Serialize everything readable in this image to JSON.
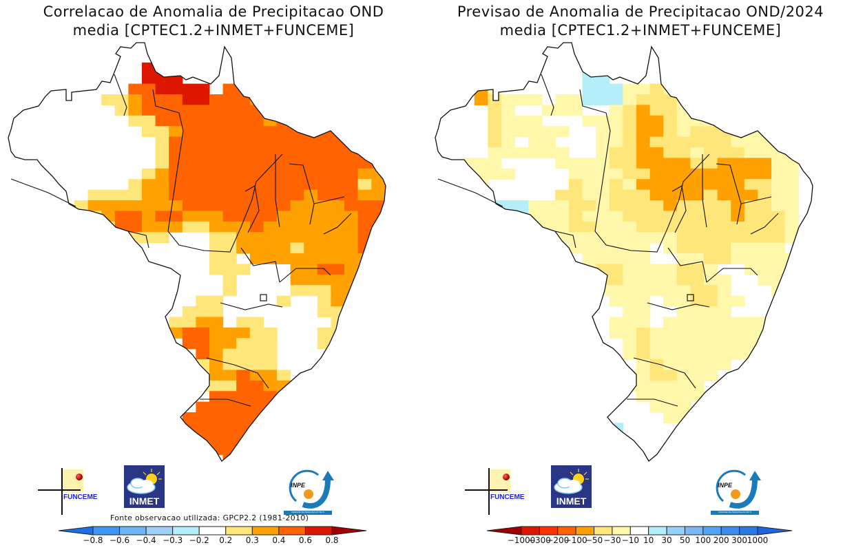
{
  "chart_data": [
    {
      "type": "heatmap",
      "id": "left",
      "title": "Correlacao de Anomalia de Precipitacao OND",
      "subtitle": "media [CPTEC1.2+INMET+FUNCEME]",
      "source_note": "Fonte observacao utilizada: GPCP2.2 (1981-2010)",
      "region": "Brasil",
      "colorbar": {
        "tick_labels": [
          "-0.8",
          "-0.6",
          "-0.4",
          "-0.3",
          "-0.2",
          "0.2",
          "0.3",
          "0.4",
          "0.6",
          "0.8"
        ],
        "colors": [
          "#1e6fe6",
          "#3c96f2",
          "#6fb4f5",
          "#9fd1f8",
          "#b4eef8",
          "#ffffff",
          "#ffe67a",
          "#ffa100",
          "#ff6400",
          "#dd1600",
          "#a00000"
        ]
      },
      "legend_classes": {
        "w": "< 0.2",
        "y": "0.2 - 0.3",
        "o": "0.3 - 0.4",
        "r": "0.4 - 0.6",
        "d": "0.6 - 0.8"
      },
      "class_colors": {
        "w": "#ffffff",
        "y": "#ffe67a",
        "o": "#ffa100",
        "r": "#ff6400",
        "d": "#dd1600"
      },
      "grid": [
        "wwwwwwwwwwwwwwwwwwwwwwwwwwww",
        "wwwwwwwwwwwddwwwwwwwwwwwwwww",
        "wwwwwwwwwwdddwwwwwwwwwwwwwww",
        "wwwwwwwwwwdddwwwwwrrwwwwwwww",
        "wwwwwwwwwrrddddwrrrwwwwwwwww",
        "wwwwwwwyyorrrddrrroowwwwwwww",
        "wwwwwwwwyorrrrrrrrrowwwwwwww",
        "wwwwwwwwwyyrrrrrrrrorrrrwwww",
        "wwwwwwwwwwyyorrrrrrrrrrrrwww",
        "wwwwwwwwwwwyrrrrrrrrrrrrrroow",
        "wwwwwwwwwwwyrrrrrrrrrrrrrrrow",
        "wwwwwwwwwwwyrrrrrrrrrrrrrrrrw",
        "wwwwwwwwwwyorrrrrrrrrrrrrroor",
        "ywwwwwwwwyoorrrrrrrrrrrrrryor",
        "ywwwwwyyyyoorrrrrrrrrrorrroor",
        "wwwwwyooooooorrrrrrrroooorrrr",
        "wwwwwyyorrorrooorrrroooooorrr",
        "wwwwwwwyrroooyyooorooooooorrw",
        "wwwwwwwwwyyywwwyyooooooooorrw",
        "wwwwwwwwwwwwwwwyyooooyoooorrw",
        "wwwwwwwwwwwwwwwyywooooooooorw",
        "wwwwwwwwwwwwwwwyyywwwoorroorw",
        "wwwwwwwwwwwwwwwwywwwwoooooorw",
        "wwwwwwwwwwwwwwwwywwwwyyyooorw",
        "wwwwwwwwwwwwwwyywwwwywwyooorw",
        "wwwwwwwwwwwwwyyywwwwwwwyyoorw",
        "wwwwwwwwwwwwyyoowyywwwwwyoorw",
        "wwwwwwwwwwwworroooyywwwyyyoww",
        "wwwwwwwwwwwwwrrooyyywwwyywwww",
        "wwwwwwwwwwwwwwroyyyywwwwwwwww",
        "wwwwwwwwwwwwwwyoyyyywwwwwwwww",
        "wwwwwwwwwwwwwwyoorooywwwwwwww",
        "wwwwwwwwwwwwwwyyyrroowwwwwwww",
        "wwwwwwwwwwwwwwwrrrrroowwwwwww",
        "wwwwwwwwwwwwwwrrrrrrrwwwwwwww",
        "wwwwwwwwwwwwwrrrrrrrrwwwwwwww",
        "wwwwwwwwwwwwrrrrrrrrwwwwwwwww",
        "wwwwwwwwwwwwwrrrrrdrwwwwwwwww",
        "wwwwwwwwwwwwwwwrrddwwwwwwwwww",
        "wwwwwwwwwwwwwwwwrrwwwwwwwwwww"
      ]
    },
    {
      "type": "heatmap",
      "id": "right",
      "title": "Previsao de Anomalia de Precipitacao OND/2024",
      "subtitle": "media [CPTEC1.2+INMET+FUNCEME]",
      "region": "Brasil",
      "colorbar": {
        "tick_labels": [
          "-1000",
          "-300",
          "-200",
          "-100",
          "-50",
          "-30",
          "-10",
          "10",
          "30",
          "50",
          "100",
          "200",
          "300",
          "1000"
        ],
        "colors": [
          "#a00000",
          "#dd1600",
          "#ff3300",
          "#ff6400",
          "#ffa100",
          "#ffe67a",
          "#fff7aa",
          "#ffffff",
          "#b4eef8",
          "#96d2fa",
          "#78b9f5",
          "#50a5f5",
          "#3c8cf0",
          "#2878e6",
          "#1e64dc"
        ]
      },
      "legend_classes": {
        "w": "-10 - 10",
        "p": "-30 - -10",
        "y": "-50 - -30",
        "o": "-100 - -50",
        "c": "10 - 30",
        "b": "30 - 50"
      },
      "class_colors": {
        "w": "#ffffff",
        "p": "#fff7aa",
        "y": "#ffe67a",
        "o": "#ffa100",
        "c": "#b4eef8",
        "b": "#96d2fa"
      },
      "grid": [
        "wwwwwwwwwwwwwwwwwwwwwwwwwwww",
        "wwwwwwwwwwwcccpwwwwwwwwwwwww",
        "wwwwwwwwwwwccwwwwwwwwwwwwwww",
        "wwwwwwwwwwwccwwwwwwwpwwwwwww",
        "wwwopwwwwwwcccppyppppwwwwwww",
        "wwwoypppwppcccpyyypppwwwwwww",
        "wwwwypwwpppwwpyoyypppowwwwww",
        "wwwwypppwwwpppyooypppyyyywww",
        "wwwwypppppwwppyooypyyyypppww",
        "wwwwypwppwwwppyoyyyyyyppppww",
        "wwwwppppppwwpyyooyypyyyppppw",
        "wwpppwwwwppppyyooooyyooooppw",
        "wwppppwwwwppppyyoooooooooppw",
        "wwppwwwwwwyppypooooooooyyppw",
        "wpwwwwwwwyyppyyyooooyoooyppw",
        "wwcccccpppyypyyyyoyyyyoyyppw",
        "wwcccccpppypppyyyyyyyyoyyypw",
        "wwwwcbbpppyypppyyyyyyyyyyypw",
        "wwwwwwwwwpppppppppyyyyyyyypw",
        "wwwwwwwwwwppppppwpyyyyppppww",
        "wwwwwwwwwwwpppppwwppyypppppw",
        "wwwwwwwwwwwpyyppppyypwwppppw",
        "wwwwwwwwwwwpyyppppyyppwwpppc",
        "wwwwwwwwwwwppppppppyypwwwppc",
        "wwwwwwwwwwwwwpppwppyyppwwwcc",
        "wwwwwwwwwwwwwwppwwppppwwwwcb",
        "wwwwwwwwwwwwwpppwppppppppwcw",
        "wwwwwwwwwwwwwppyppppppppppcw",
        "wwwwwwwwwwwwwwpyppppppppwwww",
        "wwwwwwwwwwwwwwpyppppppppwwww",
        "wwwwwwwwwwwwwwwpypppppwwwwww",
        "wwwwwwwwwwwwwwppyypppwwwwwww",
        "wwwwwwwwwwwwwwppppppwwwwwwww",
        "wwwwwwwwwwwwwwwpppppwwwwwwww",
        "wwwwwwwwwwwwwwwwpppwwwwwwwww",
        "wwwwwwwwwwwwwwwwwppwwwwwwwww",
        "wwwwwwwwwwwwwcwwwwwwwwwwwwww",
        "wwwwwwwwwwwwwcwwwwwwwwwwwwww",
        "wwwwwwwwwwwwwwwwwwwwwwwwwwww",
        "wwwwwwwwwwwwwwwwwwwwwwwwwwww"
      ]
    }
  ],
  "logos": {
    "funceme": "FUNCEME",
    "inmet": "INMET",
    "inpe": "INPE",
    "inpe_band": "UNIDADE DE PESQUISA DO MCTI"
  }
}
